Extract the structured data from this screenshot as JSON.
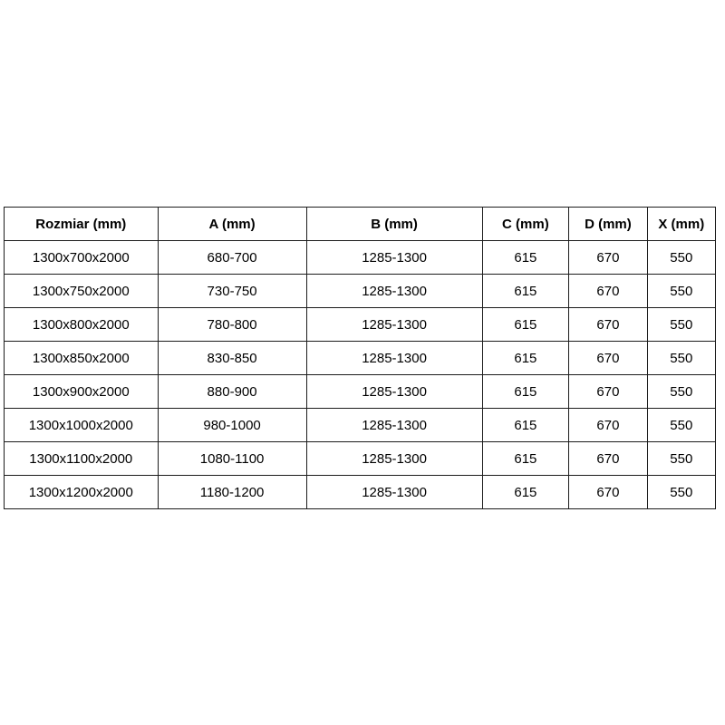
{
  "colors": {
    "background": "#ffffff",
    "border": "#1c1c1c",
    "text": "#000000"
  },
  "table": {
    "name": "dimensions-spec-table",
    "headers": [
      "Rozmiar (mm)",
      "A (mm)",
      "B (mm)",
      "C (mm)",
      "D (mm)",
      "X (mm)"
    ],
    "column_widths_pct": [
      21.6,
      20.9,
      24.7,
      12.2,
      11.0,
      9.6
    ],
    "rows": [
      [
        "1300x700x2000",
        "680-700",
        "1285-1300",
        "615",
        "670",
        "550"
      ],
      [
        "1300x750x2000",
        "730-750",
        "1285-1300",
        "615",
        "670",
        "550"
      ],
      [
        "1300x800x2000",
        "780-800",
        "1285-1300",
        "615",
        "670",
        "550"
      ],
      [
        "1300x850x2000",
        "830-850",
        "1285-1300",
        "615",
        "670",
        "550"
      ],
      [
        "1300x900x2000",
        "880-900",
        "1285-1300",
        "615",
        "670",
        "550"
      ],
      [
        "1300x1000x2000",
        "980-1000",
        "1285-1300",
        "615",
        "670",
        "550"
      ],
      [
        "1300x1100x2000",
        "1080-1100",
        "1285-1300",
        "615",
        "670",
        "550"
      ],
      [
        "1300x1200x2000",
        "1180-1200",
        "1285-1300",
        "615",
        "670",
        "550"
      ]
    ]
  }
}
